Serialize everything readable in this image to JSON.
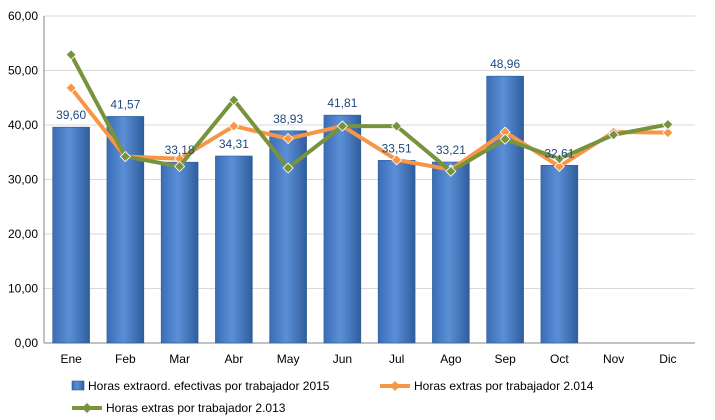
{
  "chart_data": {
    "type": "bar",
    "categories": [
      "Ene",
      "Feb",
      "Mar",
      "Abr",
      "May",
      "Jun",
      "Jul",
      "Ago",
      "Sep",
      "Oct",
      "Nov",
      "Dic"
    ],
    "ylim": [
      0,
      60
    ],
    "yticks": [
      "0,00",
      "10,00",
      "20,00",
      "30,00",
      "40,00",
      "50,00",
      "60,00"
    ],
    "grid": true,
    "legend_position": "bottom",
    "series": [
      {
        "name": "Horas extraord. efectivas por trabajador 2015",
        "type": "bar",
        "color": "#4F81BD",
        "values": [
          39.6,
          41.57,
          33.18,
          34.31,
          38.93,
          41.81,
          33.51,
          33.21,
          48.96,
          32.61,
          null,
          null
        ],
        "labels": [
          "39,60",
          "41,57",
          "33,18",
          "34,31",
          "38,93",
          "41,81",
          "33,51",
          "33,21",
          "48,96",
          "32,61",
          "",
          ""
        ]
      },
      {
        "name": "Horas extras por trabajador 2.014",
        "type": "line",
        "marker": "diamond",
        "color": "#F79646",
        "values": [
          46.8,
          34.2,
          33.8,
          39.8,
          37.5,
          39.8,
          33.6,
          31.8,
          38.7,
          32.4,
          38.7,
          38.6
        ]
      },
      {
        "name": "Horas extras por trabajador 2.013",
        "type": "line",
        "marker": "diamond",
        "color": "#77933C",
        "values": [
          52.9,
          34.2,
          32.4,
          44.6,
          32.1,
          39.8,
          39.8,
          31.5,
          37.4,
          33.8,
          38.2,
          40.1
        ]
      }
    ]
  }
}
